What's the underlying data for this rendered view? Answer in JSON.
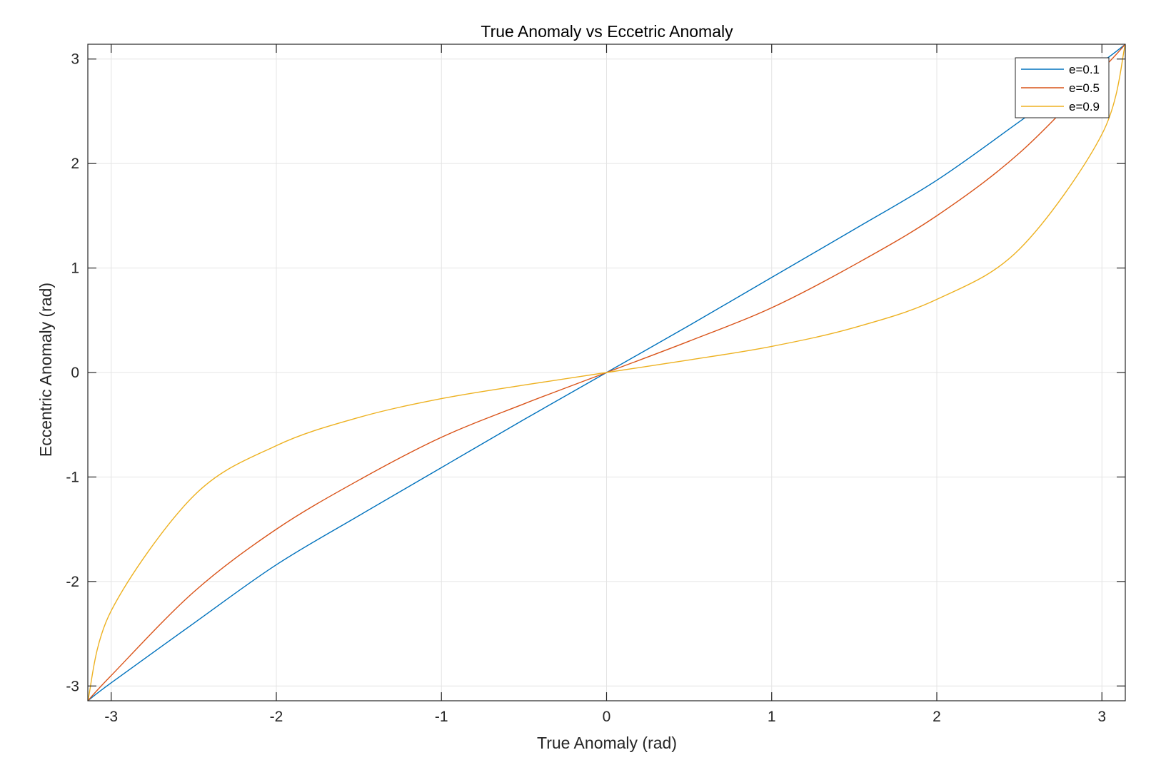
{
  "chart_data": {
    "type": "line",
    "title": "True Anomaly vs Eccetric Anomaly",
    "xlabel": "True Anomaly (rad)",
    "ylabel": "Eccentric Anomaly (rad)",
    "xlim": [
      -3.1416,
      3.1416
    ],
    "ylim": [
      -3.1416,
      3.1416
    ],
    "xticks": [
      -3,
      -2,
      -1,
      0,
      1,
      2,
      3
    ],
    "xtick_labels": [
      "-3",
      "-2",
      "-1",
      "0",
      "1",
      "2",
      "3"
    ],
    "yticks": [
      -3,
      -2,
      -1,
      0,
      1,
      2,
      3
    ],
    "ytick_labels": [
      "-3",
      "-2",
      "-1",
      "0",
      "1",
      "2",
      "3"
    ],
    "grid": true,
    "legend_position": "top-right",
    "series": [
      {
        "name": "e=0.1",
        "color": "#0072BD",
        "x": [
          -3.1416,
          -3.0,
          -2.5,
          -2.0,
          -1.5,
          -1.0,
          -0.5,
          0.0,
          0.5,
          1.0,
          1.5,
          2.0,
          2.5,
          3.0,
          3.1416
        ],
        "y": [
          -3.1416,
          -2.97,
          -2.4,
          -1.84,
          -1.37,
          -0.91,
          -0.45,
          0.0,
          0.45,
          0.91,
          1.37,
          1.84,
          2.4,
          2.97,
          3.1416
        ]
      },
      {
        "name": "e=0.5",
        "color": "#D95319",
        "x": [
          -3.1416,
          -3.0,
          -2.5,
          -2.0,
          -1.5,
          -1.0,
          -0.5,
          0.0,
          0.5,
          1.0,
          1.5,
          2.0,
          2.5,
          3.0,
          3.1416
        ],
        "y": [
          -3.1416,
          -2.9,
          -2.1,
          -1.5,
          -1.03,
          -0.62,
          -0.3,
          0.0,
          0.3,
          0.62,
          1.03,
          1.5,
          2.1,
          2.9,
          3.1416
        ]
      },
      {
        "name": "e=0.9",
        "color": "#EDB120",
        "x": [
          -3.1416,
          -3.0,
          -2.5,
          -2.0,
          -1.5,
          -1.0,
          -0.5,
          0.0,
          0.5,
          1.0,
          1.5,
          2.0,
          2.5,
          3.0,
          3.1416
        ],
        "y": [
          -3.1416,
          -2.28,
          -1.18,
          -0.7,
          -0.43,
          -0.25,
          -0.12,
          0.0,
          0.12,
          0.25,
          0.43,
          0.7,
          1.18,
          2.28,
          3.1416
        ]
      }
    ]
  }
}
